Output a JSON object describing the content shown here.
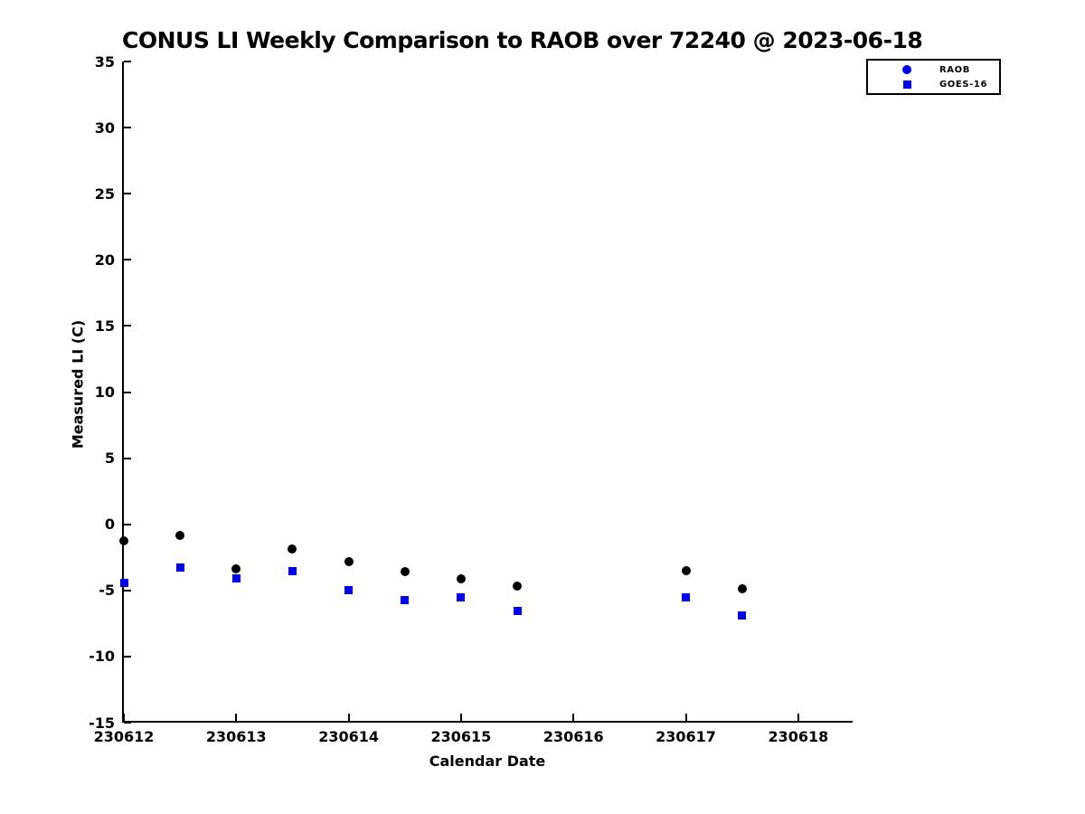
{
  "chart_data": {
    "type": "scatter",
    "title": "CONUS LI Weekly Comparison to RAOB over 72240 @ 2023-06-18",
    "xlabel": "Calendar Date",
    "ylabel": "Measured LI (C)",
    "xlim": [
      230612,
      230618.5
    ],
    "ylim": [
      -15,
      35
    ],
    "grid": false,
    "legend_position": "top-right",
    "xticks": [
      {
        "value": 230612,
        "label": "230612"
      },
      {
        "value": 230613,
        "label": "230613"
      },
      {
        "value": 230614,
        "label": "230614"
      },
      {
        "value": 230615,
        "label": "230615"
      },
      {
        "value": 230616,
        "label": "230616"
      },
      {
        "value": 230617,
        "label": "230617"
      },
      {
        "value": 230618,
        "label": "230618"
      }
    ],
    "yticks": [
      {
        "value": -15,
        "label": "-15"
      },
      {
        "value": -10,
        "label": "-10"
      },
      {
        "value": -5,
        "label": "-5"
      },
      {
        "value": 0,
        "label": "0"
      },
      {
        "value": 5,
        "label": "5"
      },
      {
        "value": 10,
        "label": "10"
      },
      {
        "value": 15,
        "label": "15"
      },
      {
        "value": 20,
        "label": "20"
      },
      {
        "value": 25,
        "label": "25"
      },
      {
        "value": 30,
        "label": "30"
      },
      {
        "value": 35,
        "label": "35"
      }
    ],
    "series": [
      {
        "name": "RAOB",
        "marker": "circle",
        "color": "#000000",
        "legend_color": "#0000ee",
        "points": [
          {
            "x": 230612.0,
            "y": -1.25
          },
          {
            "x": 230612.5,
            "y": -0.85
          },
          {
            "x": 230613.0,
            "y": -3.4
          },
          {
            "x": 230613.5,
            "y": -1.85
          },
          {
            "x": 230614.0,
            "y": -2.85
          },
          {
            "x": 230614.5,
            "y": -3.55
          },
          {
            "x": 230615.0,
            "y": -4.15
          },
          {
            "x": 230615.5,
            "y": -4.7
          },
          {
            "x": 230617.0,
            "y": -3.5
          },
          {
            "x": 230617.5,
            "y": -4.9
          }
        ]
      },
      {
        "name": "GOES-16",
        "marker": "square",
        "color": "#0000ee",
        "legend_color": "#0000ee",
        "points": [
          {
            "x": 230612.0,
            "y": -4.4
          },
          {
            "x": 230612.5,
            "y": -3.3
          },
          {
            "x": 230613.0,
            "y": -4.1
          },
          {
            "x": 230613.5,
            "y": -3.55
          },
          {
            "x": 230614.0,
            "y": -4.95
          },
          {
            "x": 230614.5,
            "y": -5.7
          },
          {
            "x": 230615.0,
            "y": -5.5
          },
          {
            "x": 230615.5,
            "y": -6.55
          },
          {
            "x": 230617.0,
            "y": -5.55
          },
          {
            "x": 230617.5,
            "y": -6.9
          }
        ]
      }
    ]
  }
}
